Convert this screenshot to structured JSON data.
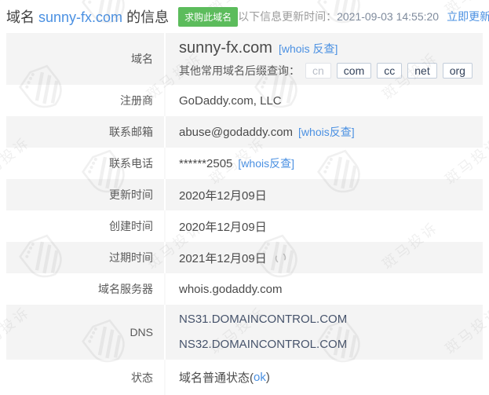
{
  "header": {
    "title_prefix": "域名",
    "domain": "sunny-fx.com",
    "title_suffix": "的信息",
    "buy_button_label": "求购此域名",
    "update_time_label": "以下信息更新时间：",
    "update_time": "2021-09-03 14:55:20",
    "refresh_link": "立即更新"
  },
  "colors": {
    "link_blue": "#4a90e2",
    "button_green": "#5cbc5c",
    "row_gray": "#f4f4f4"
  },
  "watermark": {
    "text": "斑马投诉"
  },
  "table": {
    "domain_row": {
      "label": "域名",
      "value": "sunny-fx.com",
      "whois_link": "[whois 反查]",
      "suffix_query_label": "其他常用域名后缀查询：",
      "suffixes": [
        "cn",
        "com",
        "cc",
        "net",
        "org"
      ]
    },
    "registrar_row": {
      "label": "注册商",
      "value": "GoDaddy.com, LLC"
    },
    "email_row": {
      "label": "联系邮箱",
      "value": "abuse@godaddy.com",
      "whois_link": "[whois反查]"
    },
    "phone_row": {
      "label": "联系电话",
      "value": "******2505",
      "whois_link": "[whois反查]"
    },
    "updated_row": {
      "label": "更新时间",
      "value": "2020年12月09日"
    },
    "created_row": {
      "label": "创建时间",
      "value": "2020年12月09日"
    },
    "expiry_row": {
      "label": "过期时间",
      "value": "2021年12月09日"
    },
    "nameserver_row": {
      "label": "域名服务器",
      "value": "whois.godaddy.com"
    },
    "dns_row": {
      "label": "DNS",
      "values": [
        "NS31.DOMAINCONTROL.COM",
        "NS32.DOMAINCONTROL.COM"
      ]
    },
    "status_row": {
      "label": "状态",
      "value_prefix": "域名普通状态(",
      "link_text": "ok",
      "value_suffix": ")"
    }
  }
}
